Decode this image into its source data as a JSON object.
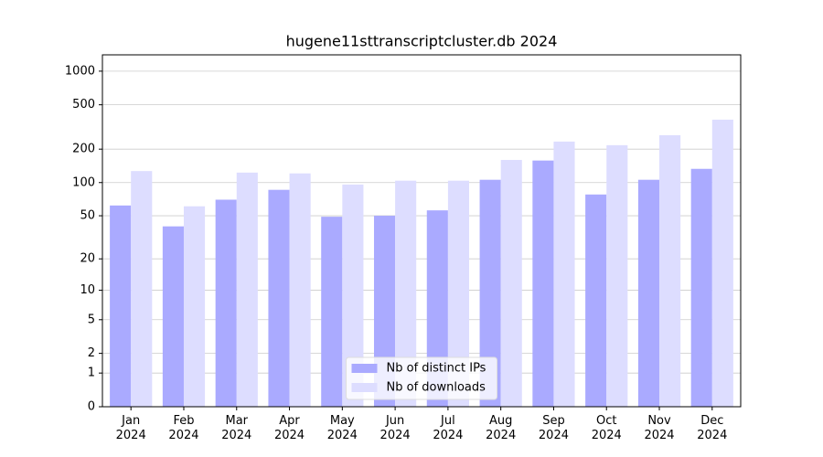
{
  "chart_data": {
    "type": "bar",
    "title": "hugene11sttranscriptcluster.db 2024",
    "categories": [
      "Jan 2024",
      "Feb 2024",
      "Mar 2024",
      "Apr 2024",
      "May 2024",
      "Jun 2024",
      "Jul 2024",
      "Aug 2024",
      "Sep 2024",
      "Oct 2024",
      "Nov 2024",
      "Dec 2024"
    ],
    "series": [
      {
        "name": "Nb of distinct IPs",
        "color": "#aaaaff",
        "values": [
          62,
          40,
          70,
          86,
          49,
          50,
          56,
          106,
          158,
          78,
          106,
          133
        ]
      },
      {
        "name": "Nb of downloads",
        "color": "#ddddff",
        "values": [
          127,
          61,
          123,
          121,
          96,
          104,
          104,
          160,
          234,
          217,
          267,
          368
        ]
      }
    ],
    "yscale": "log1p",
    "ylim": [
      0,
      1400
    ],
    "yticks": [
      0,
      1,
      2,
      5,
      10,
      20,
      50,
      100,
      200,
      500,
      1000
    ],
    "grid": true,
    "legend": "lower center"
  }
}
